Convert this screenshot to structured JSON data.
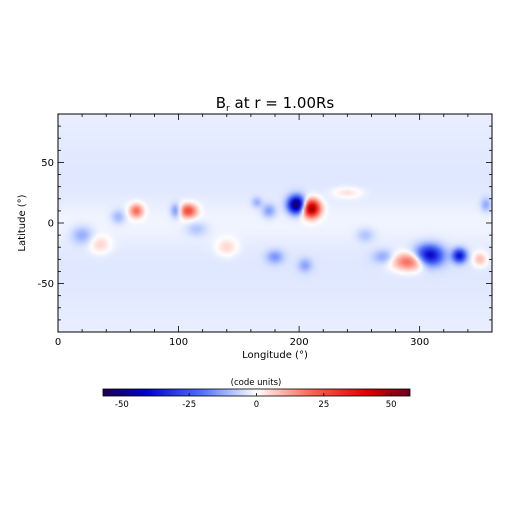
{
  "chart_data": {
    "type": "heatmap",
    "title_main": "B",
    "title_sub": "r",
    "title_rest": " at r = 1.00Rs",
    "xlabel": "Longitude (°)",
    "ylabel": "Latitude (°)",
    "xlim": [
      0,
      360
    ],
    "ylim": [
      -90,
      90
    ],
    "xticks": [
      "0",
      "100",
      "200",
      "300"
    ],
    "xtick_values": [
      0,
      100,
      200,
      300
    ],
    "yticks": [
      "-50",
      "0",
      "50"
    ],
    "ytick_values": [
      -50,
      0,
      50
    ],
    "colorbar": {
      "label": "(code units)",
      "range": [
        -57,
        57
      ],
      "ticks": [
        "-50",
        "-25",
        "0",
        "25",
        "50"
      ],
      "tick_values": [
        -50,
        -25,
        0,
        25,
        50
      ],
      "colormap": "blue-white-red diverging"
    },
    "background_value": -4,
    "features": [
      {
        "lon": 198,
        "lat": 15,
        "value": -55,
        "sigma_lon": 5,
        "sigma_lat": 5
      },
      {
        "lon": 210,
        "lat": 12,
        "value": 55,
        "sigma_lon": 5,
        "sigma_lat": 5
      },
      {
        "lon": 308,
        "lat": -27,
        "value": -40,
        "sigma_lon": 8,
        "sigma_lat": 6
      },
      {
        "lon": 333,
        "lat": -27,
        "value": -35,
        "sigma_lon": 4,
        "sigma_lat": 4
      },
      {
        "lon": 292,
        "lat": -32,
        "value": 25,
        "sigma_lon": 10,
        "sigma_lat": 5
      },
      {
        "lon": 108,
        "lat": 10,
        "value": 28,
        "sigma_lon": 5,
        "sigma_lat": 4
      },
      {
        "lon": 65,
        "lat": 10,
        "value": 22,
        "sigma_lon": 4,
        "sigma_lat": 4
      },
      {
        "lon": 98,
        "lat": 10,
        "value": -15,
        "sigma_lon": 3,
        "sigma_lat": 4
      },
      {
        "lon": 175,
        "lat": 10,
        "value": -12,
        "sigma_lon": 4,
        "sigma_lat": 4
      },
      {
        "lon": 165,
        "lat": 17,
        "value": -9,
        "sigma_lon": 3,
        "sigma_lat": 3
      },
      {
        "lon": 180,
        "lat": -28,
        "value": -12,
        "sigma_lon": 5,
        "sigma_lat": 4
      },
      {
        "lon": 205,
        "lat": -35,
        "value": -10,
        "sigma_lon": 4,
        "sigma_lat": 4
      },
      {
        "lon": 270,
        "lat": -28,
        "value": -10,
        "sigma_lon": 6,
        "sigma_lat": 4
      },
      {
        "lon": 350,
        "lat": -30,
        "value": 12,
        "sigma_lon": 4,
        "sigma_lat": 4
      },
      {
        "lon": 35,
        "lat": -18,
        "value": 8,
        "sigma_lon": 6,
        "sigma_lat": 5
      },
      {
        "lon": 20,
        "lat": -10,
        "value": -10,
        "sigma_lon": 6,
        "sigma_lat": 5
      },
      {
        "lon": 140,
        "lat": -20,
        "value": 8,
        "sigma_lon": 6,
        "sigma_lat": 5
      },
      {
        "lon": 355,
        "lat": 15,
        "value": -10,
        "sigma_lon": 3,
        "sigma_lat": 4
      },
      {
        "lon": 240,
        "lat": 25,
        "value": 7,
        "sigma_lon": 8,
        "sigma_lat": 3
      },
      {
        "lon": 115,
        "lat": -5,
        "value": -7,
        "sigma_lon": 6,
        "sigma_lat": 4
      },
      {
        "lon": 50,
        "lat": 5,
        "value": -9,
        "sigma_lon": 4,
        "sigma_lat": 4
      },
      {
        "lon": 255,
        "lat": -10,
        "value": -7,
        "sigma_lon": 5,
        "sigma_lat": 4
      }
    ]
  }
}
